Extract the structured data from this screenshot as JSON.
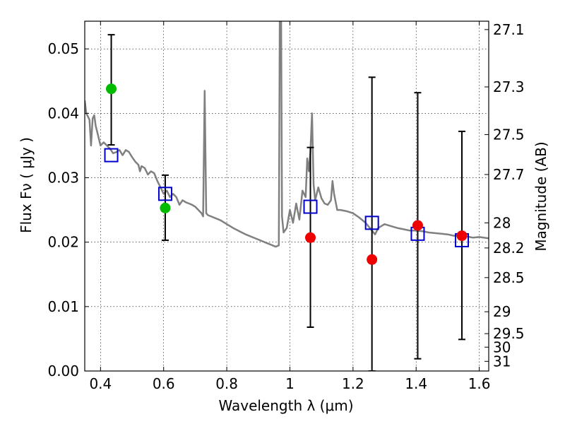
{
  "chart_data": {
    "type": "scatter",
    "xlabel": "Wavelength  λ (μm)",
    "ylabel": "Flux  Fν  ( μJy )",
    "ylabel_right": "Magnitude (AB)",
    "xlim": [
      0.35,
      1.63
    ],
    "ylim": [
      0.0,
      0.0543
    ],
    "grid": true,
    "x_ticks": [
      {
        "value": 0.4,
        "label": "0.4"
      },
      {
        "value": 0.6,
        "label": "0.6"
      },
      {
        "value": 0.8,
        "label": "0.8"
      },
      {
        "value": 1.0,
        "label": "1"
      },
      {
        "value": 1.2,
        "label": "1.2"
      },
      {
        "value": 1.4,
        "label": "1.4"
      },
      {
        "value": 1.6,
        "label": "1.6"
      }
    ],
    "y_ticks": [
      {
        "value": 0.0,
        "label": "0.00"
      },
      {
        "value": 0.01,
        "label": "0.01"
      },
      {
        "value": 0.02,
        "label": "0.02"
      },
      {
        "value": 0.03,
        "label": "0.03"
      },
      {
        "value": 0.04,
        "label": "0.04"
      },
      {
        "value": 0.05,
        "label": "0.05"
      }
    ],
    "right_ticks": [
      {
        "flux": 0.053,
        "label": "27.1"
      },
      {
        "flux": 0.0441,
        "label": "27.3"
      },
      {
        "flux": 0.0367,
        "label": "27.5"
      },
      {
        "flux": 0.0305,
        "label": "27.7"
      },
      {
        "flux": 0.023,
        "label": "28"
      },
      {
        "flux": 0.0191,
        "label": "28.2"
      },
      {
        "flux": 0.0145,
        "label": "28.5"
      },
      {
        "flux": 0.0092,
        "label": "29"
      },
      {
        "flux": 0.0058,
        "label": "29.5"
      },
      {
        "flux": 0.0037,
        "label": "30"
      },
      {
        "flux": 0.0015,
        "label": "31"
      }
    ],
    "series": [
      {
        "type": "line",
        "color": "#808080",
        "points": [
          [
            0.35,
            0.042
          ],
          [
            0.355,
            0.04
          ],
          [
            0.36,
            0.0395
          ],
          [
            0.365,
            0.039
          ],
          [
            0.37,
            0.035
          ],
          [
            0.375,
            0.0392
          ],
          [
            0.38,
            0.0397
          ],
          [
            0.385,
            0.038
          ],
          [
            0.39,
            0.037
          ],
          [
            0.395,
            0.036
          ],
          [
            0.4,
            0.035
          ],
          [
            0.41,
            0.0355
          ],
          [
            0.42,
            0.035
          ],
          [
            0.43,
            0.0345
          ],
          [
            0.44,
            0.0338
          ],
          [
            0.45,
            0.034
          ],
          [
            0.46,
            0.0343
          ],
          [
            0.47,
            0.0335
          ],
          [
            0.48,
            0.0343
          ],
          [
            0.49,
            0.034
          ],
          [
            0.5,
            0.0332
          ],
          [
            0.51,
            0.0325
          ],
          [
            0.52,
            0.032
          ],
          [
            0.525,
            0.031
          ],
          [
            0.53,
            0.0318
          ],
          [
            0.54,
            0.0315
          ],
          [
            0.55,
            0.0305
          ],
          [
            0.56,
            0.031
          ],
          [
            0.57,
            0.0307
          ],
          [
            0.58,
            0.0295
          ],
          [
            0.59,
            0.0285
          ],
          [
            0.6,
            0.0275
          ],
          [
            0.61,
            0.028
          ],
          [
            0.62,
            0.027
          ],
          [
            0.63,
            0.0275
          ],
          [
            0.64,
            0.027
          ],
          [
            0.65,
            0.0258
          ],
          [
            0.66,
            0.0265
          ],
          [
            0.67,
            0.0262
          ],
          [
            0.68,
            0.026
          ],
          [
            0.69,
            0.0258
          ],
          [
            0.7,
            0.0255
          ],
          [
            0.71,
            0.025
          ],
          [
            0.72,
            0.0245
          ],
          [
            0.725,
            0.024
          ],
          [
            0.73,
            0.0435
          ],
          [
            0.735,
            0.0245
          ],
          [
            0.74,
            0.0242
          ],
          [
            0.76,
            0.0238
          ],
          [
            0.78,
            0.0234
          ],
          [
            0.8,
            0.0228
          ],
          [
            0.82,
            0.0222
          ],
          [
            0.84,
            0.0217
          ],
          [
            0.86,
            0.0212
          ],
          [
            0.88,
            0.0208
          ],
          [
            0.9,
            0.0204
          ],
          [
            0.92,
            0.02
          ],
          [
            0.94,
            0.0196
          ],
          [
            0.955,
            0.0193
          ],
          [
            0.965,
            0.0195
          ],
          [
            0.968,
            0.056
          ],
          [
            0.972,
            0.056
          ],
          [
            0.975,
            0.024
          ],
          [
            0.98,
            0.0215
          ],
          [
            0.99,
            0.0222
          ],
          [
            1.0,
            0.025
          ],
          [
            1.01,
            0.023
          ],
          [
            1.02,
            0.026
          ],
          [
            1.03,
            0.0235
          ],
          [
            1.04,
            0.028
          ],
          [
            1.05,
            0.027
          ],
          [
            1.055,
            0.033
          ],
          [
            1.06,
            0.031
          ],
          [
            1.065,
            0.034
          ],
          [
            1.07,
            0.04
          ],
          [
            1.075,
            0.029
          ],
          [
            1.08,
            0.0265
          ],
          [
            1.09,
            0.0285
          ],
          [
            1.1,
            0.0268
          ],
          [
            1.11,
            0.026
          ],
          [
            1.12,
            0.0258
          ],
          [
            1.13,
            0.0265
          ],
          [
            1.135,
            0.0295
          ],
          [
            1.14,
            0.0275
          ],
          [
            1.15,
            0.025
          ],
          [
            1.16,
            0.025
          ],
          [
            1.18,
            0.0248
          ],
          [
            1.2,
            0.0245
          ],
          [
            1.22,
            0.0238
          ],
          [
            1.24,
            0.023
          ],
          [
            1.26,
            0.0218
          ],
          [
            1.27,
            0.0212
          ],
          [
            1.28,
            0.0222
          ],
          [
            1.3,
            0.0228
          ],
          [
            1.32,
            0.0225
          ],
          [
            1.34,
            0.0222
          ],
          [
            1.36,
            0.022
          ],
          [
            1.38,
            0.0218
          ],
          [
            1.4,
            0.0218
          ],
          [
            1.42,
            0.0217
          ],
          [
            1.44,
            0.0215
          ],
          [
            1.46,
            0.0214
          ],
          [
            1.48,
            0.0213
          ],
          [
            1.5,
            0.0212
          ],
          [
            1.52,
            0.021
          ],
          [
            1.54,
            0.021
          ],
          [
            1.56,
            0.0209
          ],
          [
            1.58,
            0.0207
          ],
          [
            1.6,
            0.0208
          ],
          [
            1.63,
            0.0206
          ]
        ]
      },
      {
        "type": "errorbar",
        "color": "#000000",
        "points": [
          {
            "x": 0.434,
            "low": 0.0351,
            "high": 0.0522
          },
          {
            "x": 0.605,
            "low": 0.0203,
            "high": 0.0304
          },
          {
            "x": 1.065,
            "low": 0.0068,
            "high": 0.0347
          },
          {
            "x": 1.26,
            "low": 0.0,
            "high": 0.0456
          },
          {
            "x": 1.405,
            "low": 0.0019,
            "high": 0.0432
          },
          {
            "x": 1.545,
            "low": 0.0049,
            "high": 0.0372
          }
        ]
      },
      {
        "type": "square",
        "color": "#0000cc",
        "points": [
          [
            0.434,
            0.0335
          ],
          [
            0.605,
            0.0275
          ],
          [
            1.065,
            0.0255
          ],
          [
            1.26,
            0.023
          ],
          [
            1.405,
            0.0213
          ],
          [
            1.545,
            0.0203
          ]
        ]
      },
      {
        "type": "circle",
        "color": "#00bb00",
        "points": [
          [
            0.434,
            0.0438
          ],
          [
            0.605,
            0.0253
          ]
        ]
      },
      {
        "type": "circle",
        "color": "#ee0000",
        "points": [
          [
            1.065,
            0.0207
          ],
          [
            1.26,
            0.0173
          ],
          [
            1.405,
            0.0226
          ],
          [
            1.545,
            0.021
          ]
        ]
      }
    ]
  }
}
